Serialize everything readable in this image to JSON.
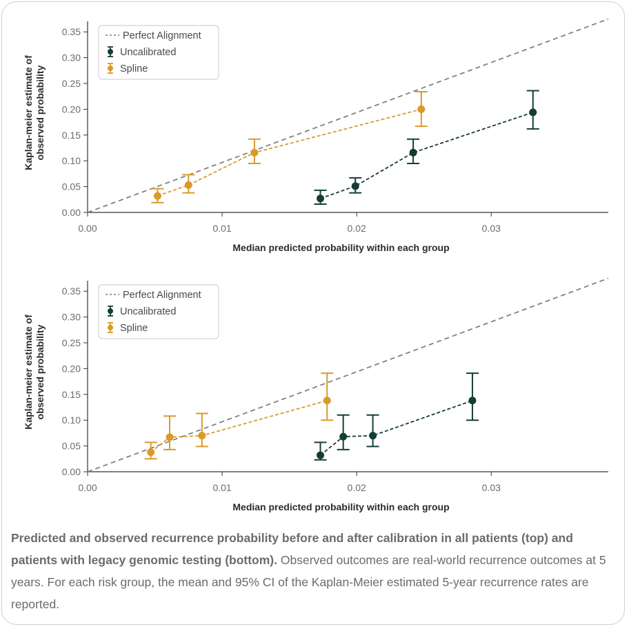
{
  "caption": {
    "bold": "Predicted and observed recurrence probability before and after calibration in all patients (top) and patients with legacy genomic testing (bottom).",
    "text": " Observed outcomes are real-world recurrence outcomes at 5 years. For each risk group, the mean and 95% CI of the Kaplan-Meier estimated 5-year recurrence rates are reported."
  },
  "colors": {
    "uncalibrated": "#143d36",
    "spline": "#d99a2b",
    "reference": "#808080"
  },
  "chart_data": [
    {
      "type": "line",
      "panel": "top",
      "xlabel": "Median predicted probability within each group",
      "ylabel": "Kaplan-meier estimate of observed probability",
      "xlim": [
        0,
        0.0387
      ],
      "ylim": [
        0,
        0.365
      ],
      "xticks": [
        "0.00",
        "0.01",
        "0.02",
        "0.03"
      ],
      "xtick_values": [
        0,
        0.01,
        0.02,
        0.03
      ],
      "yticks": [
        "0.00",
        "0.05",
        "0.10",
        "0.15",
        "0.20",
        "0.25",
        "0.30",
        "0.35"
      ],
      "ytick_values": [
        0,
        0.05,
        0.1,
        0.15,
        0.2,
        0.25,
        0.3,
        0.35
      ],
      "legend": {
        "position": "top-left",
        "entries": [
          "Perfect Alignment",
          "Uncalibrated",
          "Spline"
        ]
      },
      "reference_line": {
        "name": "Perfect Alignment",
        "x": [
          0,
          0.0387
        ],
        "y": [
          0,
          0.375
        ]
      },
      "series": [
        {
          "name": "Uncalibrated",
          "x": [
            0.0173,
            0.0199,
            0.0242,
            0.0331
          ],
          "y": [
            0.027,
            0.051,
            0.116,
            0.194
          ],
          "lower": [
            0.016,
            0.038,
            0.095,
            0.162
          ],
          "upper": [
            0.043,
            0.067,
            0.142,
            0.236
          ]
        },
        {
          "name": "Spline",
          "x": [
            0.0052,
            0.0075,
            0.0124,
            0.0248
          ],
          "y": [
            0.032,
            0.053,
            0.116,
            0.2
          ],
          "lower": [
            0.019,
            0.038,
            0.095,
            0.167
          ],
          "upper": [
            0.046,
            0.073,
            0.142,
            0.234
          ]
        }
      ]
    },
    {
      "type": "line",
      "panel": "bottom",
      "xlabel": "Median predicted probability within each group",
      "ylabel": "Kaplan-meier estimate of observed probability",
      "xlim": [
        0,
        0.0387
      ],
      "ylim": [
        0,
        0.365
      ],
      "xticks": [
        "0.00",
        "0.01",
        "0.02",
        "0.03"
      ],
      "xtick_values": [
        0,
        0.01,
        0.02,
        0.03
      ],
      "yticks": [
        "0.00",
        "0.05",
        "0.10",
        "0.15",
        "0.20",
        "0.25",
        "0.30",
        "0.35"
      ],
      "ytick_values": [
        0,
        0.05,
        0.1,
        0.15,
        0.2,
        0.25,
        0.3,
        0.35
      ],
      "legend": {
        "position": "top-left",
        "entries": [
          "Perfect Alignment",
          "Uncalibrated",
          "Spline"
        ]
      },
      "reference_line": {
        "name": "Perfect Alignment",
        "x": [
          0,
          0.0387
        ],
        "y": [
          0,
          0.375
        ]
      },
      "series": [
        {
          "name": "Uncalibrated",
          "x": [
            0.0173,
            0.019,
            0.0212,
            0.0286
          ],
          "y": [
            0.032,
            0.068,
            0.07,
            0.138
          ],
          "lower": [
            0.023,
            0.043,
            0.049,
            0.1
          ],
          "upper": [
            0.057,
            0.11,
            0.11,
            0.191
          ]
        },
        {
          "name": "Spline",
          "x": [
            0.0047,
            0.0061,
            0.0085,
            0.0178
          ],
          "y": [
            0.038,
            0.067,
            0.07,
            0.138
          ],
          "lower": [
            0.025,
            0.043,
            0.049,
            0.1
          ],
          "upper": [
            0.057,
            0.108,
            0.113,
            0.191
          ]
        }
      ]
    }
  ]
}
